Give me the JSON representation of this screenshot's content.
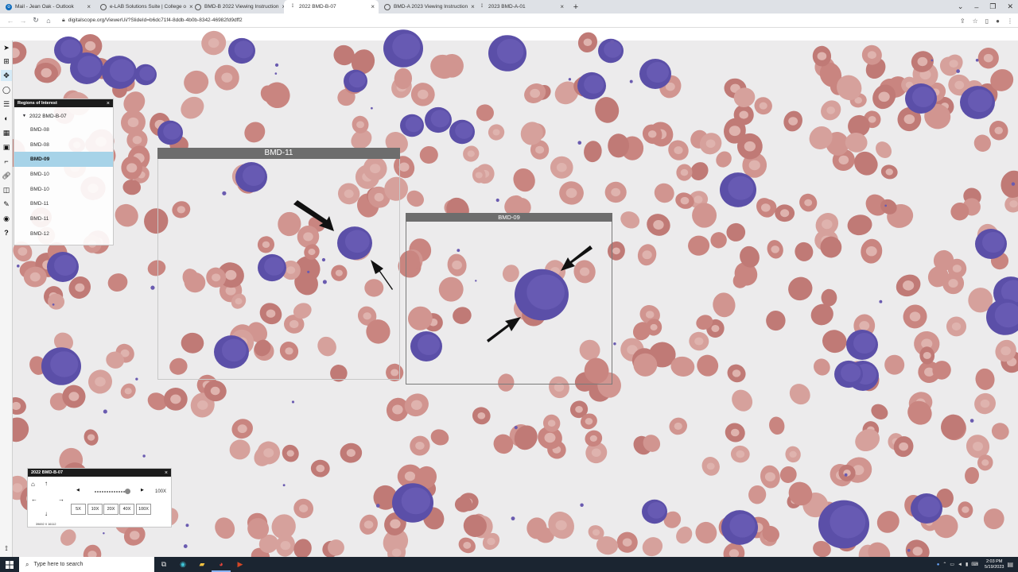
{
  "tabs": [
    {
      "label": "Mail - Jean Oak - Outlook",
      "icon": "outlook-icon",
      "active": false
    },
    {
      "label": "e-LAB Solutions Suite | College o",
      "icon": "cap-icon",
      "active": false
    },
    {
      "label": "BMD-B 2022 Viewing Instruction",
      "icon": "cap-icon",
      "active": false
    },
    {
      "label": "2022 BMD-B-07",
      "icon": "microscope-icon",
      "active": true
    },
    {
      "label": "BMD-A 2023 Viewing Instruction",
      "icon": "cap-icon",
      "active": false
    },
    {
      "label": "2023 BMD-A-01",
      "icon": "microscope-icon",
      "active": false
    }
  ],
  "address": {
    "url": "digitalscope.org/ViewerUi/?SlideId=b6dc71f4-8ddb-4b0b-8342-46982fd9dff2"
  },
  "roi_panel": {
    "title": "Regions of Interest",
    "close": "×",
    "parent": "2022 BMD-B-07",
    "items": [
      {
        "label": "BMD-08",
        "selected": false
      },
      {
        "label": "BMD-08",
        "selected": false
      },
      {
        "label": "BMD-09",
        "selected": true
      },
      {
        "label": "BMD-10",
        "selected": false
      },
      {
        "label": "BMD-10",
        "selected": false
      },
      {
        "label": "BMD-11",
        "selected": false
      },
      {
        "label": "BMD-11",
        "selected": false
      },
      {
        "label": "BMD-12",
        "selected": false
      }
    ]
  },
  "regions": {
    "bmd11": {
      "label": "BMD-11"
    },
    "bmd09": {
      "label": "BMD-09"
    }
  },
  "navigator": {
    "title": "2022 BMD-B-07",
    "close": "×",
    "zoom_level": "100X",
    "zoom_buttons": [
      "5X",
      "10X",
      "20X",
      "40X",
      "100X"
    ],
    "dimensions": "39692 X 16112"
  },
  "taskbar": {
    "search_placeholder": "Type here to search",
    "time": "2:03 PM",
    "date": "5/19/2023"
  },
  "colors": {
    "rbc": "#c98580",
    "lymphocyte": "#5b4fa8",
    "region_header": "#6d6d6d",
    "roi_selected": "#a7d3e8"
  }
}
